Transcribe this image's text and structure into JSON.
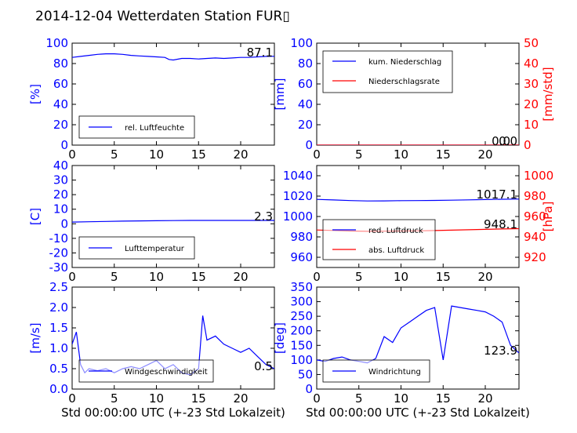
{
  "title": "2014-12-04 Wetterdaten Station FUR▯",
  "colors": {
    "primary": "#0000ff",
    "secondary": "#ff0000",
    "light": "#7777ff"
  },
  "chart_data": [
    {
      "id": "humidity",
      "type": "line",
      "xlim": [
        0,
        24
      ],
      "ylim": [
        0,
        100
      ],
      "yticks": [
        0,
        20,
        40,
        60,
        80,
        100
      ],
      "xticks": [
        0,
        5,
        10,
        15,
        20
      ],
      "ylabel": "[%]",
      "annotation": "87.1",
      "series": [
        {
          "name": "rel. Luftfeuchte",
          "color": "#0000ff",
          "x": [
            0,
            1,
            2,
            3,
            4,
            5,
            6,
            7,
            8,
            9,
            10,
            11,
            11.5,
            12,
            13,
            14,
            15,
            16,
            17,
            18,
            19,
            20,
            21,
            22,
            23,
            24
          ],
          "y": [
            86,
            87,
            88,
            89,
            89.5,
            89.5,
            89,
            88,
            87.5,
            87,
            86.5,
            86,
            84,
            83.5,
            85,
            85,
            84.5,
            85,
            85.5,
            85,
            85.5,
            86,
            86,
            86.5,
            87,
            87.1
          ]
        }
      ]
    },
    {
      "id": "precipitation",
      "type": "line",
      "xlim": [
        0,
        24
      ],
      "ylim": [
        0,
        100
      ],
      "ylim_right": [
        0,
        50
      ],
      "yticks": [
        0,
        20,
        40,
        60,
        80,
        100
      ],
      "yticks_right": [
        0,
        10,
        20,
        30,
        40,
        50
      ],
      "xticks": [
        0,
        5,
        10,
        15,
        20
      ],
      "ylabel": "[mm]",
      "ylabel_right": "[mm/std]",
      "annotations": [
        "0.0",
        "0.0"
      ],
      "series": [
        {
          "name": "kum. Niederschlag",
          "color": "#0000ff",
          "x": [
            0,
            24
          ],
          "y": [
            0,
            0
          ]
        },
        {
          "name": "Niederschlagsrate",
          "color": "#ff0000",
          "axis": "right",
          "x": [
            0,
            24
          ],
          "y": [
            0,
            0
          ]
        }
      ]
    },
    {
      "id": "temperature",
      "type": "line",
      "xlim": [
        0,
        24
      ],
      "ylim": [
        -30,
        40
      ],
      "yticks": [
        -30,
        -20,
        -10,
        0,
        10,
        20,
        30,
        40
      ],
      "xticks": [
        0,
        5,
        10,
        15,
        20
      ],
      "ylabel": "[C]",
      "annotation": "2.3",
      "series": [
        {
          "name": "Lufttemperatur",
          "color": "#0000ff",
          "x": [
            0,
            2,
            4,
            6,
            8,
            10,
            12,
            14,
            16,
            18,
            20,
            22,
            24
          ],
          "y": [
            1.2,
            1.4,
            1.6,
            1.8,
            2.0,
            2.1,
            2.2,
            2.3,
            2.3,
            2.3,
            2.3,
            2.3,
            2.3
          ]
        }
      ]
    },
    {
      "id": "pressure",
      "type": "line",
      "xlim": [
        0,
        24
      ],
      "ylim": [
        950,
        1050
      ],
      "ylim_right": [
        910,
        1010
      ],
      "yticks": [
        960,
        980,
        1000,
        1020,
        1040
      ],
      "yticks_right": [
        920,
        940,
        960,
        980,
        1000
      ],
      "xticks": [
        0,
        5,
        10,
        15,
        20
      ],
      "ylabel_right": "[hPa]",
      "annotations": [
        "1017.1",
        "948.1"
      ],
      "series": [
        {
          "name": "red. Luftdruck",
          "color": "#0000ff",
          "x": [
            0,
            2,
            4,
            6,
            8,
            10,
            12,
            14,
            16,
            18,
            20,
            22,
            24
          ],
          "y": [
            1016.8,
            1016.2,
            1015.6,
            1015.2,
            1015.3,
            1015.5,
            1015.6,
            1015.8,
            1016.0,
            1016.3,
            1016.6,
            1016.9,
            1017.1
          ]
        },
        {
          "name": "abs. Luftdruck",
          "color": "#ff0000",
          "axis": "right",
          "x": [
            0,
            2,
            4,
            6,
            8,
            10,
            12,
            14,
            16,
            18,
            20,
            22,
            24
          ],
          "y": [
            946.8,
            946.3,
            945.8,
            945.5,
            945.6,
            945.8,
            945.9,
            946.2,
            946.6,
            947.0,
            947.4,
            947.8,
            948.1
          ]
        }
      ]
    },
    {
      "id": "windspeed",
      "type": "line",
      "xlim": [
        0,
        24
      ],
      "ylim": [
        0,
        2.5
      ],
      "yticks": [
        0.0,
        0.5,
        1.0,
        1.5,
        2.0,
        2.5
      ],
      "ytick_labels": [
        "0.0",
        "0.5",
        "1.0",
        "1.5",
        "2.0",
        "2.5"
      ],
      "xticks": [
        0,
        5,
        10,
        15,
        20
      ],
      "ylabel": "[m/s]",
      "xlabel": "Std 00:00:00 UTC (+-23 Std Lokalzeit)",
      "annotation": "0.5",
      "series": [
        {
          "name": "Windgeschwindigkeit",
          "color": "#0000ff",
          "x": [
            0,
            0.5,
            1,
            1.5,
            2,
            3,
            4,
            5,
            6,
            7,
            8,
            9,
            10,
            11,
            12,
            13,
            14,
            15,
            15.5,
            16,
            17,
            18,
            19,
            20,
            21,
            22,
            23,
            24
          ],
          "y": [
            1.1,
            1.4,
            0.6,
            0.4,
            0.5,
            0.45,
            0.5,
            0.4,
            0.5,
            0.55,
            0.5,
            0.6,
            0.7,
            0.5,
            0.6,
            0.4,
            0.35,
            0.5,
            1.8,
            1.2,
            1.3,
            1.1,
            1.0,
            0.9,
            1.0,
            0.8,
            0.6,
            0.5
          ]
        }
      ]
    },
    {
      "id": "winddirection",
      "type": "line",
      "xlim": [
        0,
        24
      ],
      "ylim": [
        0,
        350
      ],
      "yticks": [
        0,
        50,
        100,
        150,
        200,
        250,
        300,
        350
      ],
      "xticks": [
        0,
        5,
        10,
        15,
        20
      ],
      "ylabel": "[deg]",
      "xlabel": "Std 00:00:00 UTC (+-23 Std Lokalzeit)",
      "annotation": "123.9",
      "series": [
        {
          "name": "Windrichtung",
          "color": "#0000ff",
          "x": [
            0,
            1,
            2,
            3,
            4,
            5,
            6,
            7,
            8,
            9,
            10,
            11,
            12,
            13,
            14,
            15,
            16,
            17,
            18,
            19,
            20,
            21,
            22,
            23,
            24
          ],
          "y": [
            100,
            95,
            105,
            110,
            100,
            95,
            90,
            105,
            180,
            160,
            210,
            230,
            250,
            270,
            280,
            100,
            285,
            280,
            275,
            270,
            265,
            250,
            230,
            150,
            124
          ]
        }
      ]
    }
  ]
}
